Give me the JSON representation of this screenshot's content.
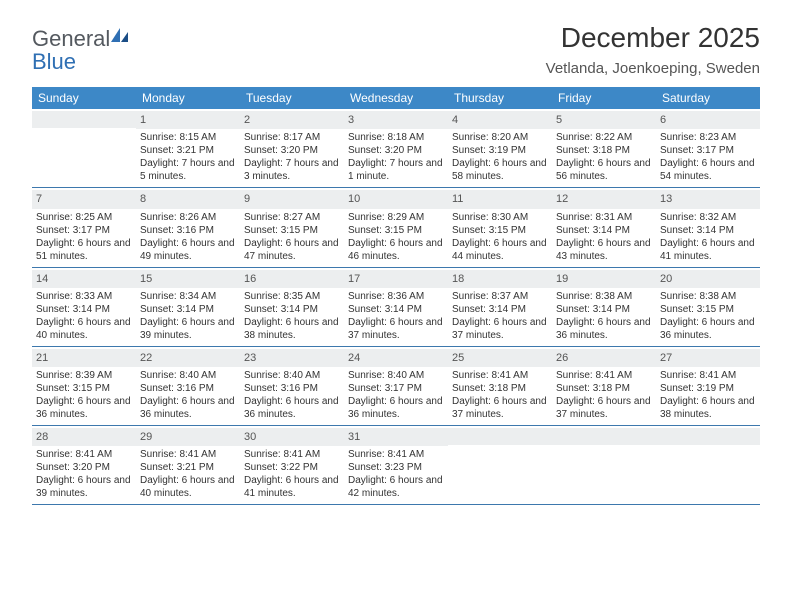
{
  "brand": {
    "general": "General",
    "blue": "Blue"
  },
  "title": "December 2025",
  "location": "Vetlanda, Joenkoeping, Sweden",
  "colors": {
    "header_bg": "#3d88c7",
    "row_divider": "#3d78ad",
    "daynum_bg": "#eceeef"
  },
  "weekdays": [
    "Sunday",
    "Monday",
    "Tuesday",
    "Wednesday",
    "Thursday",
    "Friday",
    "Saturday"
  ],
  "weeks": [
    [
      {
        "n": "",
        "sr": "",
        "ss": "",
        "dl": ""
      },
      {
        "n": "1",
        "sr": "Sunrise: 8:15 AM",
        "ss": "Sunset: 3:21 PM",
        "dl": "Daylight: 7 hours and 5 minutes."
      },
      {
        "n": "2",
        "sr": "Sunrise: 8:17 AM",
        "ss": "Sunset: 3:20 PM",
        "dl": "Daylight: 7 hours and 3 minutes."
      },
      {
        "n": "3",
        "sr": "Sunrise: 8:18 AM",
        "ss": "Sunset: 3:20 PM",
        "dl": "Daylight: 7 hours and 1 minute."
      },
      {
        "n": "4",
        "sr": "Sunrise: 8:20 AM",
        "ss": "Sunset: 3:19 PM",
        "dl": "Daylight: 6 hours and 58 minutes."
      },
      {
        "n": "5",
        "sr": "Sunrise: 8:22 AM",
        "ss": "Sunset: 3:18 PM",
        "dl": "Daylight: 6 hours and 56 minutes."
      },
      {
        "n": "6",
        "sr": "Sunrise: 8:23 AM",
        "ss": "Sunset: 3:17 PM",
        "dl": "Daylight: 6 hours and 54 minutes."
      }
    ],
    [
      {
        "n": "7",
        "sr": "Sunrise: 8:25 AM",
        "ss": "Sunset: 3:17 PM",
        "dl": "Daylight: 6 hours and 51 minutes."
      },
      {
        "n": "8",
        "sr": "Sunrise: 8:26 AM",
        "ss": "Sunset: 3:16 PM",
        "dl": "Daylight: 6 hours and 49 minutes."
      },
      {
        "n": "9",
        "sr": "Sunrise: 8:27 AM",
        "ss": "Sunset: 3:15 PM",
        "dl": "Daylight: 6 hours and 47 minutes."
      },
      {
        "n": "10",
        "sr": "Sunrise: 8:29 AM",
        "ss": "Sunset: 3:15 PM",
        "dl": "Daylight: 6 hours and 46 minutes."
      },
      {
        "n": "11",
        "sr": "Sunrise: 8:30 AM",
        "ss": "Sunset: 3:15 PM",
        "dl": "Daylight: 6 hours and 44 minutes."
      },
      {
        "n": "12",
        "sr": "Sunrise: 8:31 AM",
        "ss": "Sunset: 3:14 PM",
        "dl": "Daylight: 6 hours and 43 minutes."
      },
      {
        "n": "13",
        "sr": "Sunrise: 8:32 AM",
        "ss": "Sunset: 3:14 PM",
        "dl": "Daylight: 6 hours and 41 minutes."
      }
    ],
    [
      {
        "n": "14",
        "sr": "Sunrise: 8:33 AM",
        "ss": "Sunset: 3:14 PM",
        "dl": "Daylight: 6 hours and 40 minutes."
      },
      {
        "n": "15",
        "sr": "Sunrise: 8:34 AM",
        "ss": "Sunset: 3:14 PM",
        "dl": "Daylight: 6 hours and 39 minutes."
      },
      {
        "n": "16",
        "sr": "Sunrise: 8:35 AM",
        "ss": "Sunset: 3:14 PM",
        "dl": "Daylight: 6 hours and 38 minutes."
      },
      {
        "n": "17",
        "sr": "Sunrise: 8:36 AM",
        "ss": "Sunset: 3:14 PM",
        "dl": "Daylight: 6 hours and 37 minutes."
      },
      {
        "n": "18",
        "sr": "Sunrise: 8:37 AM",
        "ss": "Sunset: 3:14 PM",
        "dl": "Daylight: 6 hours and 37 minutes."
      },
      {
        "n": "19",
        "sr": "Sunrise: 8:38 AM",
        "ss": "Sunset: 3:14 PM",
        "dl": "Daylight: 6 hours and 36 minutes."
      },
      {
        "n": "20",
        "sr": "Sunrise: 8:38 AM",
        "ss": "Sunset: 3:15 PM",
        "dl": "Daylight: 6 hours and 36 minutes."
      }
    ],
    [
      {
        "n": "21",
        "sr": "Sunrise: 8:39 AM",
        "ss": "Sunset: 3:15 PM",
        "dl": "Daylight: 6 hours and 36 minutes."
      },
      {
        "n": "22",
        "sr": "Sunrise: 8:40 AM",
        "ss": "Sunset: 3:16 PM",
        "dl": "Daylight: 6 hours and 36 minutes."
      },
      {
        "n": "23",
        "sr": "Sunrise: 8:40 AM",
        "ss": "Sunset: 3:16 PM",
        "dl": "Daylight: 6 hours and 36 minutes."
      },
      {
        "n": "24",
        "sr": "Sunrise: 8:40 AM",
        "ss": "Sunset: 3:17 PM",
        "dl": "Daylight: 6 hours and 36 minutes."
      },
      {
        "n": "25",
        "sr": "Sunrise: 8:41 AM",
        "ss": "Sunset: 3:18 PM",
        "dl": "Daylight: 6 hours and 37 minutes."
      },
      {
        "n": "26",
        "sr": "Sunrise: 8:41 AM",
        "ss": "Sunset: 3:18 PM",
        "dl": "Daylight: 6 hours and 37 minutes."
      },
      {
        "n": "27",
        "sr": "Sunrise: 8:41 AM",
        "ss": "Sunset: 3:19 PM",
        "dl": "Daylight: 6 hours and 38 minutes."
      }
    ],
    [
      {
        "n": "28",
        "sr": "Sunrise: 8:41 AM",
        "ss": "Sunset: 3:20 PM",
        "dl": "Daylight: 6 hours and 39 minutes."
      },
      {
        "n": "29",
        "sr": "Sunrise: 8:41 AM",
        "ss": "Sunset: 3:21 PM",
        "dl": "Daylight: 6 hours and 40 minutes."
      },
      {
        "n": "30",
        "sr": "Sunrise: 8:41 AM",
        "ss": "Sunset: 3:22 PM",
        "dl": "Daylight: 6 hours and 41 minutes."
      },
      {
        "n": "31",
        "sr": "Sunrise: 8:41 AM",
        "ss": "Sunset: 3:23 PM",
        "dl": "Daylight: 6 hours and 42 minutes."
      },
      {
        "n": "",
        "sr": "",
        "ss": "",
        "dl": ""
      },
      {
        "n": "",
        "sr": "",
        "ss": "",
        "dl": ""
      },
      {
        "n": "",
        "sr": "",
        "ss": "",
        "dl": ""
      }
    ]
  ]
}
